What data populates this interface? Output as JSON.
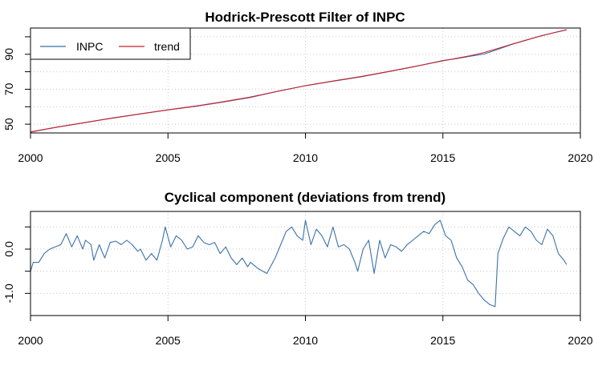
{
  "colors": {
    "inpc": "#3a72a8",
    "trend": "#c8202e",
    "grid": "#c8c8c8"
  },
  "chart_data": [
    {
      "type": "line",
      "title": "Hodrick-Prescott Filter of INPC",
      "xlim": [
        2000,
        2020
      ],
      "ylim": [
        45,
        105
      ],
      "xticks": [
        2000,
        2005,
        2010,
        2015,
        2020
      ],
      "xtick_labels": [
        "2000",
        "2005",
        "2010",
        "2015",
        "2020"
      ],
      "yticks": [
        50,
        60,
        70,
        80,
        90,
        100
      ],
      "ytick_labels": [
        "50",
        "",
        "70",
        "",
        "90",
        ""
      ],
      "grid": true,
      "legend": {
        "placement": "top-left",
        "entries": [
          "INPC",
          "trend"
        ]
      },
      "series": [
        {
          "name": "INPC",
          "color": "#3a72a8",
          "x": [
            2000.0,
            2001.0,
            2002.0,
            2003.0,
            2004.0,
            2005.0,
            2006.0,
            2007.0,
            2008.0,
            2009.0,
            2010.0,
            2011.0,
            2012.0,
            2013.0,
            2014.0,
            2015.0,
            2015.5,
            2016.0,
            2016.5,
            2017.0,
            2017.5,
            2018.0,
            2018.5,
            2019.0,
            2019.5
          ],
          "y": [
            45.5,
            48.5,
            51.0,
            53.6,
            55.9,
            58.2,
            60.2,
            62.7,
            65.3,
            68.9,
            72.0,
            74.6,
            77.0,
            80.0,
            83.0,
            86.4,
            87.5,
            88.9,
            90.1,
            92.8,
            95.6,
            97.9,
            100.3,
            102.2,
            104.0
          ]
        },
        {
          "name": "trend",
          "color": "#c8202e",
          "x": [
            2000.0,
            2001.0,
            2002.0,
            2003.0,
            2004.0,
            2005.0,
            2006.0,
            2007.0,
            2008.0,
            2009.0,
            2010.0,
            2011.0,
            2012.0,
            2013.0,
            2014.0,
            2015.0,
            2015.5,
            2016.0,
            2016.5,
            2017.0,
            2017.5,
            2018.0,
            2018.5,
            2019.0,
            2019.5
          ],
          "y": [
            45.6,
            48.4,
            51.0,
            53.5,
            55.9,
            58.2,
            60.4,
            62.8,
            65.5,
            68.8,
            72.0,
            74.7,
            77.2,
            80.1,
            83.1,
            86.2,
            87.7,
            89.2,
            91.0,
            93.3,
            95.7,
            98.0,
            100.2,
            102.2,
            104.0
          ]
        }
      ]
    },
    {
      "type": "line",
      "title": "Cyclical component (deviations from trend)",
      "xlim": [
        2000,
        2020
      ],
      "ylim": [
        -1.5,
        0.85
      ],
      "xticks": [
        2000,
        2005,
        2010,
        2015,
        2020
      ],
      "xtick_labels": [
        "2000",
        "2005",
        "2010",
        "2015",
        "2020"
      ],
      "yticks": [
        -1.0,
        -0.5,
        0.0,
        0.5
      ],
      "ytick_labels": [
        "-1.0",
        "",
        "0.0",
        ""
      ],
      "grid": true,
      "series": [
        {
          "color": "#3a72a8",
          "x": [
            2000.0,
            2000.1,
            2000.3,
            2000.5,
            2000.7,
            2000.9,
            2001.1,
            2001.3,
            2001.5,
            2001.7,
            2001.9,
            2002.0,
            2002.2,
            2002.3,
            2002.5,
            2002.7,
            2002.9,
            2003.1,
            2003.3,
            2003.5,
            2003.7,
            2003.9,
            2004.0,
            2004.2,
            2004.4,
            2004.6,
            2004.8,
            2004.9,
            2005.1,
            2005.3,
            2005.5,
            2005.7,
            2005.9,
            2006.1,
            2006.3,
            2006.5,
            2006.7,
            2006.9,
            2007.1,
            2007.3,
            2007.5,
            2007.7,
            2007.9,
            2008.0,
            2008.3,
            2008.6,
            2008.9,
            2009.1,
            2009.3,
            2009.5,
            2009.7,
            2009.9,
            2010.0,
            2010.2,
            2010.4,
            2010.6,
            2010.8,
            2011.0,
            2011.2,
            2011.4,
            2011.6,
            2011.8,
            2011.9,
            2012.1,
            2012.3,
            2012.5,
            2012.7,
            2012.9,
            2013.1,
            2013.3,
            2013.5,
            2013.7,
            2013.9,
            2014.1,
            2014.3,
            2014.5,
            2014.7,
            2014.9,
            2015.1,
            2015.3,
            2015.5,
            2015.7,
            2015.9,
            2016.1,
            2016.3,
            2016.5,
            2016.7,
            2016.9,
            2017.0,
            2017.2,
            2017.4,
            2017.6,
            2017.8,
            2018.0,
            2018.2,
            2018.4,
            2018.6,
            2018.8,
            2019.0,
            2019.2,
            2019.4,
            2019.5
          ],
          "y": [
            -0.5,
            -0.3,
            -0.3,
            -0.1,
            0.0,
            0.05,
            0.1,
            0.35,
            0.05,
            0.3,
            0.0,
            0.2,
            0.1,
            -0.25,
            0.1,
            -0.2,
            0.15,
            0.18,
            0.1,
            0.2,
            0.1,
            -0.05,
            0.0,
            -0.25,
            -0.1,
            -0.25,
            0.2,
            0.5,
            0.05,
            0.3,
            0.2,
            0.0,
            0.05,
            0.3,
            0.15,
            0.1,
            0.15,
            -0.1,
            0.05,
            -0.2,
            -0.35,
            -0.2,
            -0.4,
            -0.3,
            -0.45,
            -0.55,
            -0.2,
            0.1,
            0.4,
            0.5,
            0.3,
            0.2,
            0.65,
            0.1,
            0.45,
            0.3,
            0.05,
            0.5,
            0.05,
            0.1,
            0.0,
            -0.3,
            -0.5,
            0.0,
            0.2,
            -0.55,
            0.2,
            -0.2,
            0.1,
            0.05,
            -0.05,
            0.1,
            0.2,
            0.3,
            0.4,
            0.35,
            0.55,
            0.65,
            0.3,
            0.2,
            -0.2,
            -0.4,
            -0.7,
            -0.8,
            -1.0,
            -1.15,
            -1.25,
            -1.3,
            -0.1,
            0.25,
            0.5,
            0.4,
            0.3,
            0.5,
            0.4,
            0.2,
            0.1,
            0.45,
            0.3,
            -0.1,
            -0.25,
            -0.35
          ]
        }
      ]
    }
  ]
}
